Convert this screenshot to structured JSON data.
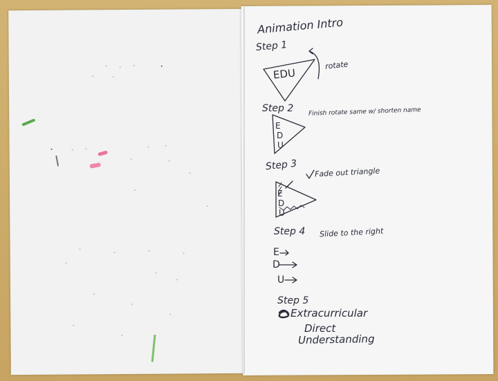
{
  "notes": {
    "title": "Animation Intro",
    "step1": {
      "label": "Step 1",
      "note": "rotate",
      "tri_text": "EDU"
    },
    "step2": {
      "label": "Step 2",
      "note": "Finish rotate same w/ shorten name",
      "tri_letters": [
        "E",
        "D",
        "U"
      ]
    },
    "step3": {
      "label": "Step 3",
      "note": "Fade out triangle",
      "tri_letters": [
        "E",
        "D",
        "U"
      ]
    },
    "step4": {
      "label": "Step 4",
      "note": "Slide to the right",
      "letters": [
        "E",
        "D",
        "U"
      ]
    },
    "step5": {
      "label": "Step 5",
      "lines": [
        "Extracurricular",
        "Direct",
        "Understanding"
      ]
    }
  },
  "colors": {
    "ink": "#2b2b3a",
    "paper": "#f5f6f5",
    "table": "#c9a866",
    "pink_mark": "#e7759a",
    "green_mark": "#57a84c"
  }
}
